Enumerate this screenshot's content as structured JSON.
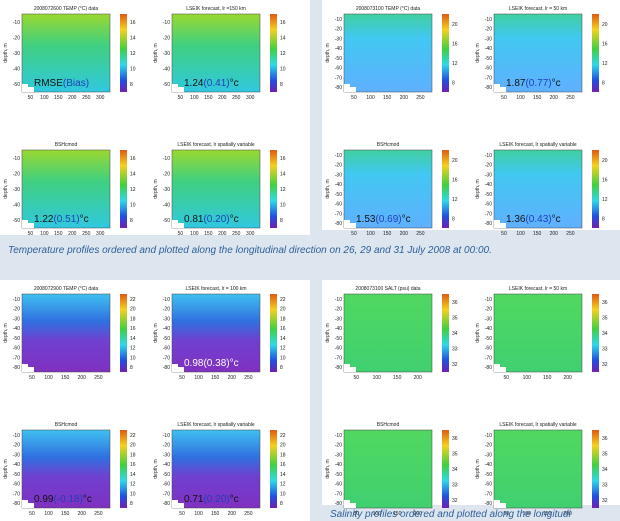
{
  "groups": [
    {
      "xticks": [
        50,
        100,
        150,
        200,
        250,
        300
      ],
      "yticks": [
        -10,
        -20,
        -30,
        -40,
        -50
      ],
      "cbticks": [
        16,
        14,
        12,
        10,
        8
      ],
      "panels": [
        {
          "title": "2008072600  TEMP (°C) data",
          "ylabel": "depth, m",
          "note": {
            "value": "RMSE",
            "bias": "(Bias)"
          }
        },
        {
          "title": "LSEIK forecast, lr =150 km",
          "ylabel": "depth, m",
          "note": {
            "value": "1.24",
            "bias": "(0.41)",
            "unit": "°c"
          }
        },
        {
          "title": "BSHcmod",
          "ylabel": "depth, m",
          "note": {
            "value": "1.22",
            "bias": "(0.51)",
            "unit": "°c"
          }
        },
        {
          "title": "LSEIK forecast, lr spatially variable",
          "ylabel": "depth, m",
          "note": {
            "value": "0.81",
            "bias": "(0.20)",
            "unit": "°c"
          }
        }
      ]
    },
    {
      "xticks": [
        50,
        100,
        150,
        200,
        250
      ],
      "yticks": [
        -10,
        -20,
        -30,
        -40,
        -50,
        -60,
        -70,
        -80
      ],
      "cbticks": [
        20,
        16,
        12,
        8
      ],
      "panels": [
        {
          "title": "2008073100  TEMP (°C) data",
          "ylabel": "depth, m"
        },
        {
          "title": "LSEIK forecast, lr = 50 km",
          "ylabel": "depth, m",
          "note": {
            "value": "1.87",
            "bias": "(0.77)",
            "unit": "°c"
          }
        },
        {
          "title": "BSHcmod",
          "ylabel": "depth, m",
          "note": {
            "value": "1.53",
            "bias": "(0.69)",
            "unit": "°c"
          }
        },
        {
          "title": "LSEIK forecast, lr spatially variable",
          "ylabel": "depth, m",
          "note": {
            "value": "1.36",
            "bias": "(0.43)",
            "unit": "°c"
          }
        }
      ]
    },
    {
      "xticks": [
        50,
        100,
        150,
        200,
        250
      ],
      "yticks": [
        -10,
        -20,
        -30,
        -40,
        -50,
        -60,
        -70,
        -80
      ],
      "cbticks": [
        22,
        20,
        18,
        16,
        14,
        12,
        10,
        8
      ],
      "panels": [
        {
          "title": "2008072900  TEMP (°C) data",
          "ylabel": "depth, m"
        },
        {
          "title": "LSEIK forecast, lr = 100 km",
          "ylabel": "depth, m",
          "note": {
            "value": "0.98",
            "bias": "(0.38)",
            "unit": "°c"
          }
        },
        {
          "title": "BSHcmod",
          "ylabel": "depth, m",
          "note": {
            "value": "0.99",
            "bias": "(-0.18)",
            "unit": "°c"
          }
        },
        {
          "title": "LSEIK forecast, lr spatially variable",
          "ylabel": "depth, m",
          "note": {
            "value": "0.71",
            "bias": "(0.20)",
            "unit": "°c"
          }
        }
      ]
    },
    {
      "xticks": [
        50,
        100,
        150,
        200
      ],
      "yticks": [
        -10,
        -20,
        -30,
        -40,
        -50,
        -60,
        -70,
        -80
      ],
      "cbticks": [
        36,
        35,
        34,
        33,
        32
      ],
      "panels": [
        {
          "title": "2008073100  SALT (psu) data",
          "ylabel": "depth, m"
        },
        {
          "title": "LSEIK forecast, lr = 50 km",
          "ylabel": "depth, m"
        },
        {
          "title": "BSHcmod",
          "ylabel": "depth, m"
        },
        {
          "title": "LSEIK forecast, lr spatially variable",
          "ylabel": "depth, m"
        }
      ]
    }
  ],
  "captions": [
    "Temperature profiles ordered and plotted along the longitudinal direction on 26, 29 and 31 July 2008 at 00:00.",
    "Salinity profiles ordered and plotted along the longitudi"
  ]
}
